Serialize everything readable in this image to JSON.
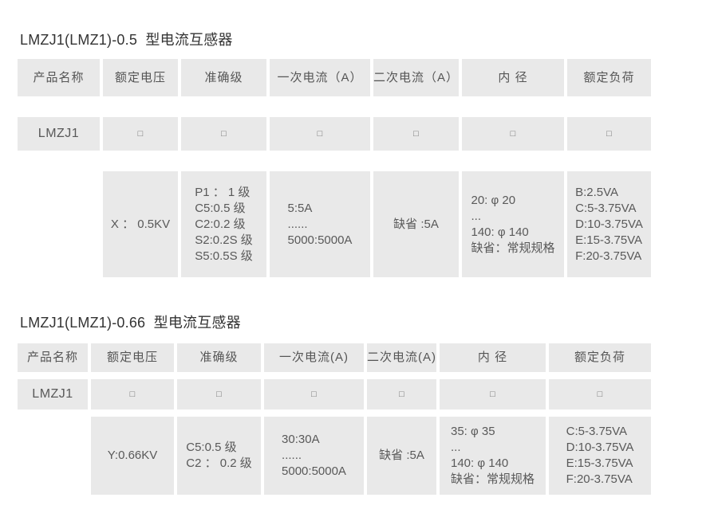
{
  "colors": {
    "page_background": "#ffffff",
    "cell_background": "#e9e9e9",
    "title_text": "#333333",
    "cell_text": "#595959"
  },
  "tables": [
    {
      "title": "LMZJ1(LMZ1)-0.5  型电流互感器",
      "columns": [
        "产品名称",
        "额定电压",
        "准确级",
        "一次电流（A）",
        "二次电流（A）",
        "内 径",
        "额定负荷"
      ],
      "product_row": {
        "name": "LMZJ1",
        "placeholder": "□"
      },
      "data_cells": [
        {
          "lines": [
            "X ： 0.5KV"
          ]
        },
        {
          "lines": [
            "P1 ： 1 级",
            "C5:0.5 级",
            "C2:0.2 级",
            "S2:0.2S 级",
            "S5:0.5S 级"
          ]
        },
        {
          "lines": [
            "5:5A",
            "......",
            "5000:5000A"
          ]
        },
        {
          "lines": [
            "缺省 :5A"
          ]
        },
        {
          "lines": [
            "20: φ 20",
            "...",
            "140: φ 140",
            "缺省：常规规格"
          ]
        },
        {
          "lines": [
            "B:2.5VA",
            "C:5-3.75VA",
            "D:10-3.75VA",
            "E:15-3.75VA",
            "F:20-3.75VA"
          ]
        }
      ]
    },
    {
      "title": "LMZJ1(LMZ1)-0.66  型电流互感器",
      "columns": [
        "产品名称",
        "额定电压",
        "准确级",
        "一次电流(A)",
        "二次电流(A)",
        "内 径",
        "额定负荷"
      ],
      "product_row": {
        "name": "LMZJ1",
        "placeholder": "□"
      },
      "data_cells": [
        {
          "lines": [
            "Y:0.66KV"
          ]
        },
        {
          "lines": [
            "C5:0.5 级",
            "C2 ： 0.2 级"
          ]
        },
        {
          "lines": [
            "30:30A",
            "......",
            "5000:5000A"
          ]
        },
        {
          "lines": [
            "缺省 :5A"
          ]
        },
        {
          "lines": [
            "35: φ 35",
            "...",
            "140: φ 140",
            "缺省：常规规格"
          ]
        },
        {
          "lines": [
            "C:5-3.75VA",
            "D:10-3.75VA",
            "E:15-3.75VA",
            "F:20-3.75VA"
          ]
        }
      ]
    }
  ]
}
